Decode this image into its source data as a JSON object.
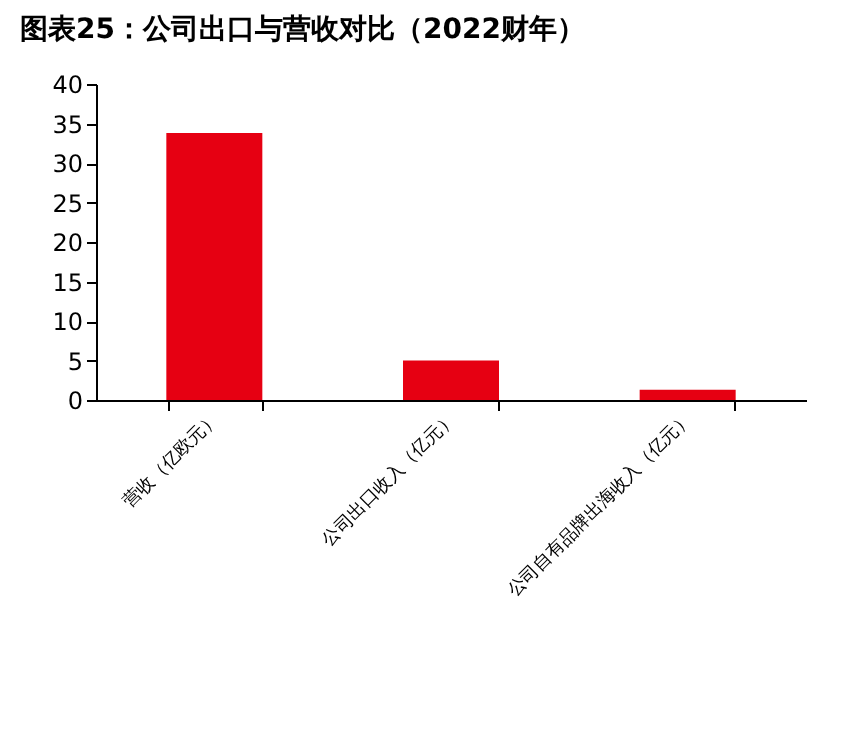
{
  "chart_data": {
    "type": "bar",
    "title": "图表25：公司出口与营收对比（2022财年）",
    "categories": [
      "营收（亿欧元）",
      "公司出口收入（亿元）",
      "公司自有品牌出海收入（亿元）"
    ],
    "values": [
      33.8,
      5.0,
      1.3
    ],
    "color": "#e60012",
    "ylim": [
      0,
      40
    ],
    "yticks": [
      0,
      5,
      10,
      15,
      20,
      25,
      30,
      35,
      40
    ],
    "grid": false
  }
}
